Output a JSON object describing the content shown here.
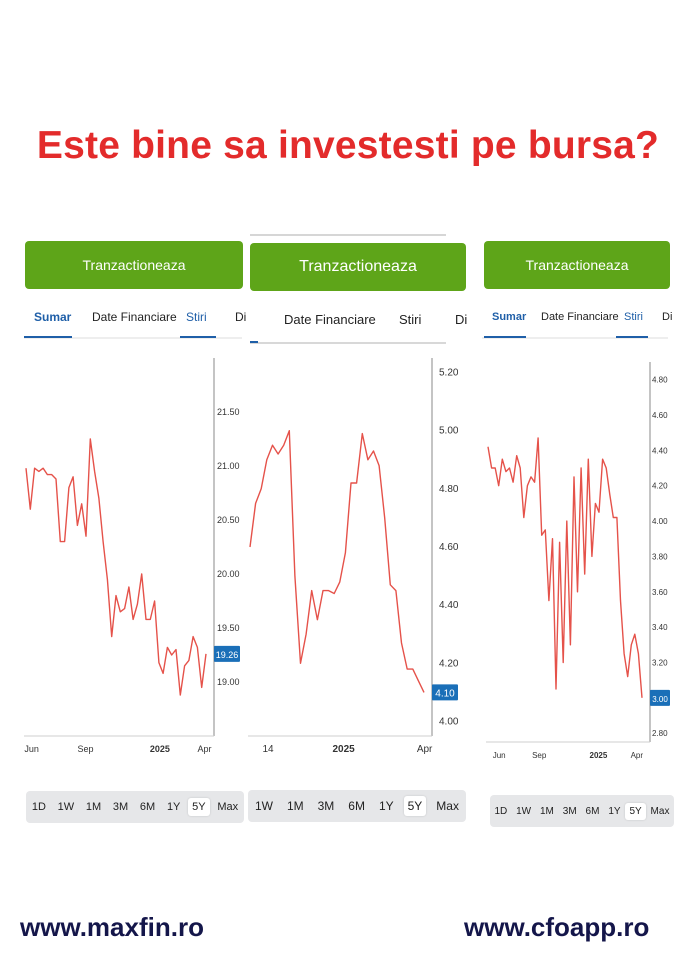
{
  "headline": "Este bine sa investesti pe bursa?",
  "footer": {
    "left": "www.maxfin.ro",
    "right": "www.cfoapp.ro"
  },
  "colors": {
    "line": "#e5524a",
    "trade": "#5ea519",
    "accent": "#1f5fa8",
    "headline": "#e32b2b"
  },
  "panels": [
    {
      "trade_label": "Tranzactioneaza",
      "tabs": [
        "Sumar",
        "Date Financiare",
        "Stiri",
        "Di"
      ],
      "ranges": [
        "1D",
        "1W",
        "1M",
        "3M",
        "6M",
        "1Y",
        "5Y",
        "Max"
      ],
      "selected_range": "5Y",
      "current_price": "19.26"
    },
    {
      "trade_label": "Tranzactioneaza",
      "tabs": [
        "Date Financiare",
        "Stiri",
        "Di"
      ],
      "ranges": [
        "1W",
        "1M",
        "3M",
        "6M",
        "1Y",
        "5Y",
        "Max"
      ],
      "selected_range": "5Y",
      "current_price": "4.10"
    },
    {
      "trade_label": "Tranzactioneaza",
      "tabs": [
        "Sumar",
        "Date Financiare",
        "Stiri",
        "Di"
      ],
      "ranges": [
        "1D",
        "1W",
        "1M",
        "3M",
        "6M",
        "1Y",
        "5Y",
        "Max"
      ],
      "selected_range": "5Y",
      "current_price": "3.00"
    }
  ],
  "chart_data": [
    {
      "type": "line",
      "x_ticks": [
        "Jun",
        "Sep",
        "2025",
        "Apr"
      ],
      "y_ticks": [
        "21.50",
        "21.00",
        "20.50",
        "20.00",
        "19.50",
        "19.00"
      ],
      "ylim": [
        18.5,
        22.0
      ],
      "current": 19.26,
      "series": [
        {
          "values": [
            20.98,
            20.6,
            20.98,
            20.95,
            20.98,
            20.92,
            20.92,
            20.88,
            20.3,
            20.3,
            20.8,
            20.9,
            20.45,
            20.65,
            20.35,
            21.25,
            20.95,
            20.7,
            20.3,
            19.95,
            19.42,
            19.8,
            19.65,
            19.68,
            19.88,
            19.58,
            19.72,
            20.0,
            19.58,
            19.58,
            19.75,
            19.18,
            19.08,
            19.32,
            19.25,
            19.3,
            18.88,
            19.15,
            19.2,
            19.42,
            19.32,
            18.95,
            19.26
          ]
        }
      ]
    },
    {
      "type": "line",
      "x_ticks": [
        "14",
        "2025",
        "Apr"
      ],
      "y_ticks": [
        "5.20",
        "5.00",
        "4.80",
        "4.60",
        "4.40",
        "4.20",
        "4.00"
      ],
      "ylim": [
        3.95,
        5.25
      ],
      "current": 4.1,
      "series": [
        {
          "values": [
            4.6,
            4.75,
            4.8,
            4.9,
            4.95,
            4.92,
            4.95,
            5.0,
            4.5,
            4.2,
            4.3,
            4.45,
            4.35,
            4.45,
            4.45,
            4.44,
            4.48,
            4.58,
            4.82,
            4.82,
            4.99,
            4.9,
            4.93,
            4.88,
            4.7,
            4.47,
            4.45,
            4.27,
            4.18,
            4.18,
            4.14,
            4.1
          ]
        }
      ]
    },
    {
      "type": "line",
      "x_ticks": [
        "Jun",
        "Sep",
        "2025",
        "Apr"
      ],
      "y_ticks": [
        "4.80",
        "4.60",
        "4.40",
        "4.20",
        "4.00",
        "3.80",
        "3.60",
        "3.40",
        "3.20",
        "3.00",
        "2.80"
      ],
      "ylim": [
        2.75,
        4.9
      ],
      "current": 3.0,
      "series": [
        {
          "values": [
            4.42,
            4.3,
            4.3,
            4.2,
            4.35,
            4.28,
            4.3,
            4.22,
            4.37,
            4.3,
            4.02,
            4.2,
            4.25,
            4.22,
            4.47,
            3.92,
            3.95,
            3.55,
            3.9,
            3.05,
            3.88,
            3.2,
            4.0,
            3.3,
            4.25,
            3.6,
            4.3,
            3.7,
            4.35,
            3.8,
            4.1,
            4.05,
            4.35,
            4.3,
            4.15,
            4.02,
            4.02,
            3.55,
            3.25,
            3.12,
            3.3,
            3.36,
            3.25,
            3.0
          ]
        }
      ]
    }
  ]
}
